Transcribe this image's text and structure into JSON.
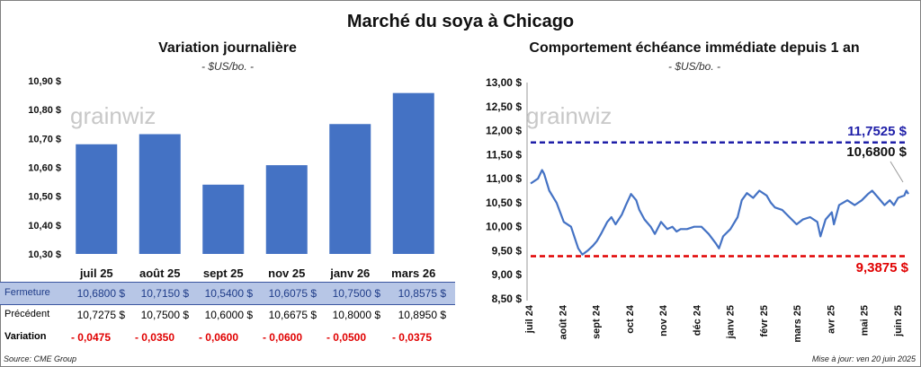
{
  "title": "Marché du soya à Chicago",
  "watermark": "grainwiz",
  "left_chart": {
    "title": "Variation journalière",
    "subtitle": "- $US/bo. -"
  },
  "right_chart": {
    "title": "Comportement échéance immédiate depuis 1 an",
    "subtitle": "- $US/bo. -",
    "annotations": {
      "high": "11,7525 $",
      "current": "10,6800 $",
      "low": "9,3875 $"
    }
  },
  "table": {
    "rows": [
      {
        "label": "Fermeture",
        "values": [
          "10,6800 $",
          "10,7150 $",
          "10,5400 $",
          "10,6075 $",
          "10,7500 $",
          "10,8575 $"
        ]
      },
      {
        "label": "Précédent",
        "values": [
          "10,7275 $",
          "10,7500 $",
          "10,6000 $",
          "10,6675 $",
          "10,8000 $",
          "10,8950 $"
        ]
      },
      {
        "label": "Variation",
        "values": [
          "- 0,0475",
          "- 0,0350",
          "- 0,0600",
          "- 0,0600",
          "- 0,0500",
          "- 0,0375"
        ]
      }
    ]
  },
  "footer": {
    "source": "Source: CME Group",
    "updated": "Mise à jour: ven 20 juin 2025"
  },
  "colors": {
    "bar": "#4472c4",
    "line": "#4472c4",
    "high_line": "#1f1fa8",
    "low_line": "#e00000",
    "close_row_bg": "#b7c6e6"
  },
  "chart_data": [
    {
      "type": "bar",
      "categories": [
        "juil 25",
        "août 25",
        "sept 25",
        "nov 25",
        "janv 26",
        "mars 26"
      ],
      "values": [
        10.68,
        10.715,
        10.54,
        10.6075,
        10.75,
        10.8575
      ],
      "ylim": [
        10.3,
        10.9
      ],
      "yticks": [
        "10,30 $",
        "10,40 $",
        "10,50 $",
        "10,60 $",
        "10,70 $",
        "10,80 $",
        "10,90 $"
      ],
      "grid": false
    },
    {
      "type": "line",
      "x": [
        "2024-06-20",
        "2024-06-27",
        "2024-07-01",
        "2024-07-03",
        "2024-07-08",
        "2024-07-15",
        "2024-07-22",
        "2024-07-29",
        "2024-08-05",
        "2024-08-09",
        "2024-08-14",
        "2024-08-19",
        "2024-08-23",
        "2024-08-27",
        "2024-09-02",
        "2024-09-06",
        "2024-09-10",
        "2024-09-16",
        "2024-09-20",
        "2024-09-25",
        "2024-09-30",
        "2024-10-03",
        "2024-10-08",
        "2024-10-14",
        "2024-10-18",
        "2024-10-24",
        "2024-10-30",
        "2024-11-04",
        "2024-11-08",
        "2024-11-12",
        "2024-11-18",
        "2024-11-25",
        "2024-12-02",
        "2024-12-09",
        "2024-12-16",
        "2024-12-19",
        "2024-12-23",
        "2024-12-30",
        "2025-01-06",
        "2025-01-10",
        "2025-01-15",
        "2025-01-21",
        "2025-01-27",
        "2025-02-03",
        "2025-02-07",
        "2025-02-11",
        "2025-02-18",
        "2025-02-25",
        "2025-03-04",
        "2025-03-10",
        "2025-03-17",
        "2025-03-24",
        "2025-03-27",
        "2025-04-01",
        "2025-04-07",
        "2025-04-09",
        "2025-04-14",
        "2025-04-22",
        "2025-04-29",
        "2025-05-06",
        "2025-05-12",
        "2025-05-16",
        "2025-05-22",
        "2025-05-28",
        "2025-06-02",
        "2025-06-06",
        "2025-06-10",
        "2025-06-16",
        "2025-06-18",
        "2025-06-20"
      ],
      "values": [
        10.9,
        11.0,
        11.18,
        11.1,
        10.75,
        10.5,
        10.1,
        10.0,
        9.55,
        9.42,
        9.5,
        9.6,
        9.7,
        9.85,
        10.1,
        10.2,
        10.05,
        10.25,
        10.45,
        10.68,
        10.55,
        10.35,
        10.15,
        10.0,
        9.85,
        10.1,
        9.95,
        10.0,
        9.9,
        9.95,
        9.95,
        10.0,
        10.0,
        9.85,
        9.65,
        9.55,
        9.8,
        9.95,
        10.2,
        10.55,
        10.7,
        10.6,
        10.75,
        10.65,
        10.5,
        10.4,
        10.35,
        10.2,
        10.05,
        10.15,
        10.2,
        10.1,
        9.8,
        10.15,
        10.3,
        10.05,
        10.45,
        10.55,
        10.45,
        10.55,
        10.68,
        10.75,
        10.6,
        10.45,
        10.55,
        10.45,
        10.6,
        10.65,
        10.75,
        10.68
      ],
      "ylim": [
        8.5,
        13.0
      ],
      "yticks": [
        "8,50 $",
        "9,00 $",
        "9,50 $",
        "10,00 $",
        "10,50 $",
        "11,00 $",
        "11,50 $",
        "12,00 $",
        "12,50 $",
        "13,00 $"
      ],
      "xticks": [
        "juil 24",
        "août 24",
        "sept 24",
        "oct 24",
        "nov 24",
        "déc 24",
        "janv 25",
        "févr 25",
        "mars 25",
        "avr 25",
        "mai 25",
        "juin 25"
      ],
      "reference_lines": [
        {
          "value": 11.7525,
          "style": "dashed"
        },
        {
          "value": 9.3875,
          "style": "dashed"
        }
      ],
      "grid": false
    }
  ]
}
